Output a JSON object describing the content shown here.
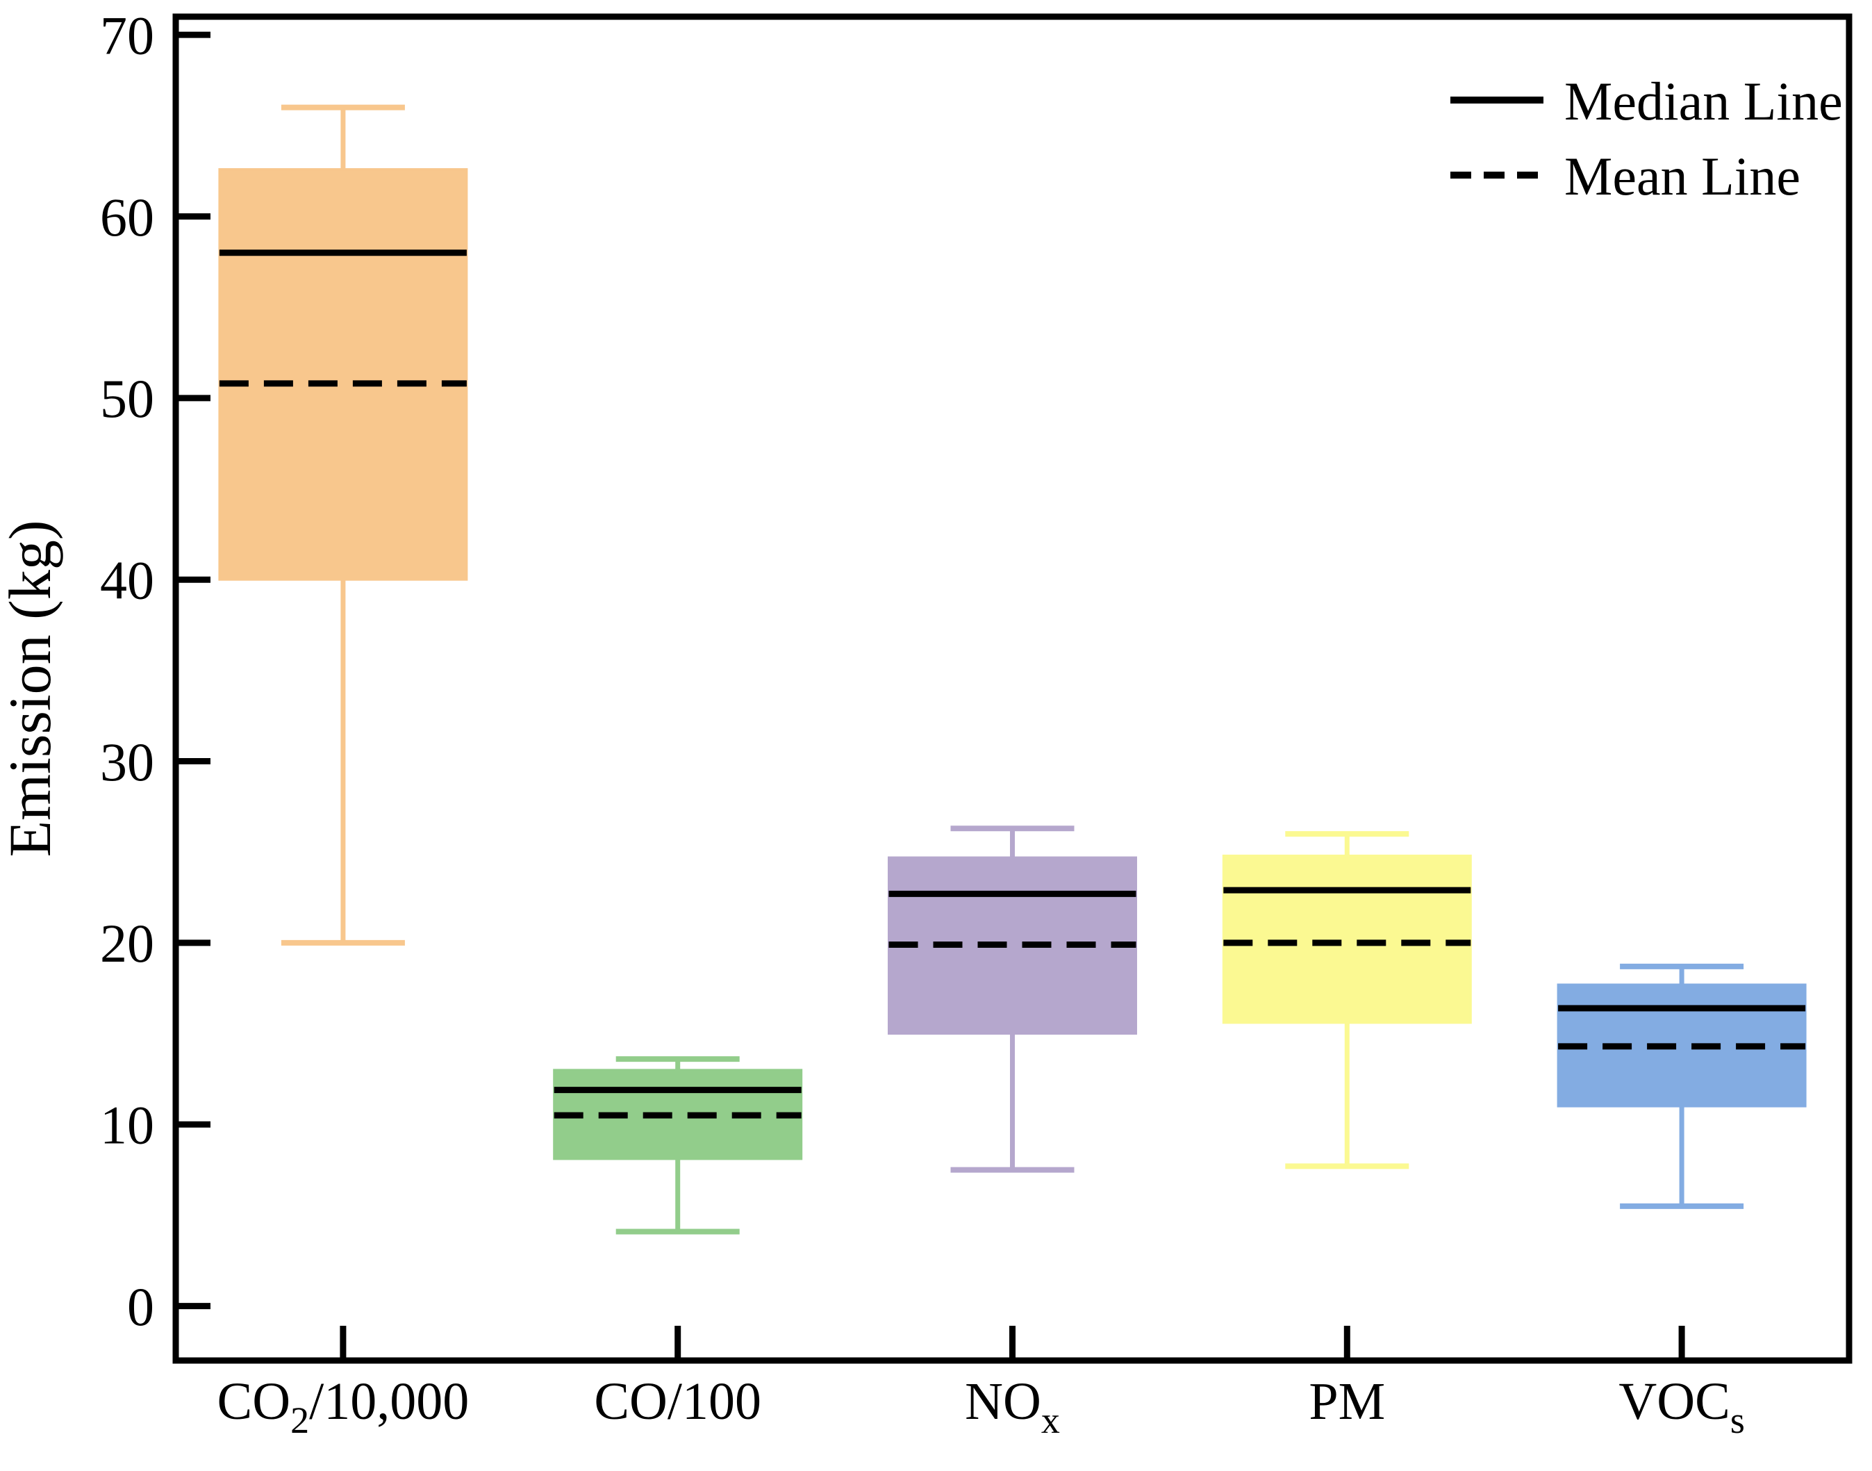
{
  "chart": {
    "ylabel": "Emission (kg)",
    "legend": {
      "median": "Median Line",
      "mean": "Mean Line"
    }
  },
  "chart_data": {
    "type": "boxplot",
    "title": "",
    "xlabel": "",
    "ylabel": "Emission (kg)",
    "ylim": [
      -3,
      71
    ],
    "yticks": [
      0,
      10,
      20,
      30,
      40,
      50,
      60,
      70
    ],
    "grid": false,
    "frame": "full-box",
    "tick_direction": "in",
    "legend_position": "top-right-inside",
    "legend_entries": [
      {
        "label": "Median Line",
        "line_style": "solid",
        "color": "#000000"
      },
      {
        "label": "Mean Line",
        "line_style": "dashed",
        "color": "#000000"
      }
    ],
    "categories": [
      "CO2/10,000",
      "CO/100",
      "NOx",
      "PM",
      "VOCs"
    ],
    "category_labels_rich": [
      {
        "parts": [
          {
            "text": "CO",
            "sub": false
          },
          {
            "text": "2",
            "sub": true
          },
          {
            "text": "/10,000",
            "sub": false
          }
        ]
      },
      {
        "parts": [
          {
            "text": "CO/100",
            "sub": false
          }
        ]
      },
      {
        "parts": [
          {
            "text": "NO",
            "sub": false
          },
          {
            "text": "x",
            "sub": true
          }
        ]
      },
      {
        "parts": [
          {
            "text": "PM",
            "sub": false
          }
        ]
      },
      {
        "parts": [
          {
            "text": "VOC",
            "sub": false
          },
          {
            "text": "s",
            "sub": true
          }
        ]
      }
    ],
    "series": [
      {
        "name": "CO2/10,000",
        "color": "#F8C78D",
        "whisker_low": 20.0,
        "q1": 40.0,
        "mean": 50.8,
        "median": 58.0,
        "q3": 62.6,
        "whisker_high": 66.0
      },
      {
        "name": "CO/100",
        "color": "#92CD8B",
        "whisker_low": 4.1,
        "q1": 8.1,
        "mean": 10.5,
        "median": 11.9,
        "q3": 13.0,
        "whisker_high": 13.6
      },
      {
        "name": "NOx",
        "color": "#B5A7CD",
        "whisker_low": 7.5,
        "q1": 15.0,
        "mean": 19.9,
        "median": 22.7,
        "q3": 24.7,
        "whisker_high": 26.3
      },
      {
        "name": "PM",
        "color": "#FBF992",
        "whisker_low": 7.7,
        "q1": 15.6,
        "mean": 20.0,
        "median": 22.9,
        "q3": 24.8,
        "whisker_high": 26.0
      },
      {
        "name": "VOCs",
        "color": "#83ACE2",
        "whisker_low": 5.5,
        "q1": 11.0,
        "mean": 14.3,
        "median": 16.4,
        "q3": 17.7,
        "whisker_high": 18.7
      }
    ],
    "median_line_color": "#000000",
    "mean_line_color": "#000000"
  }
}
